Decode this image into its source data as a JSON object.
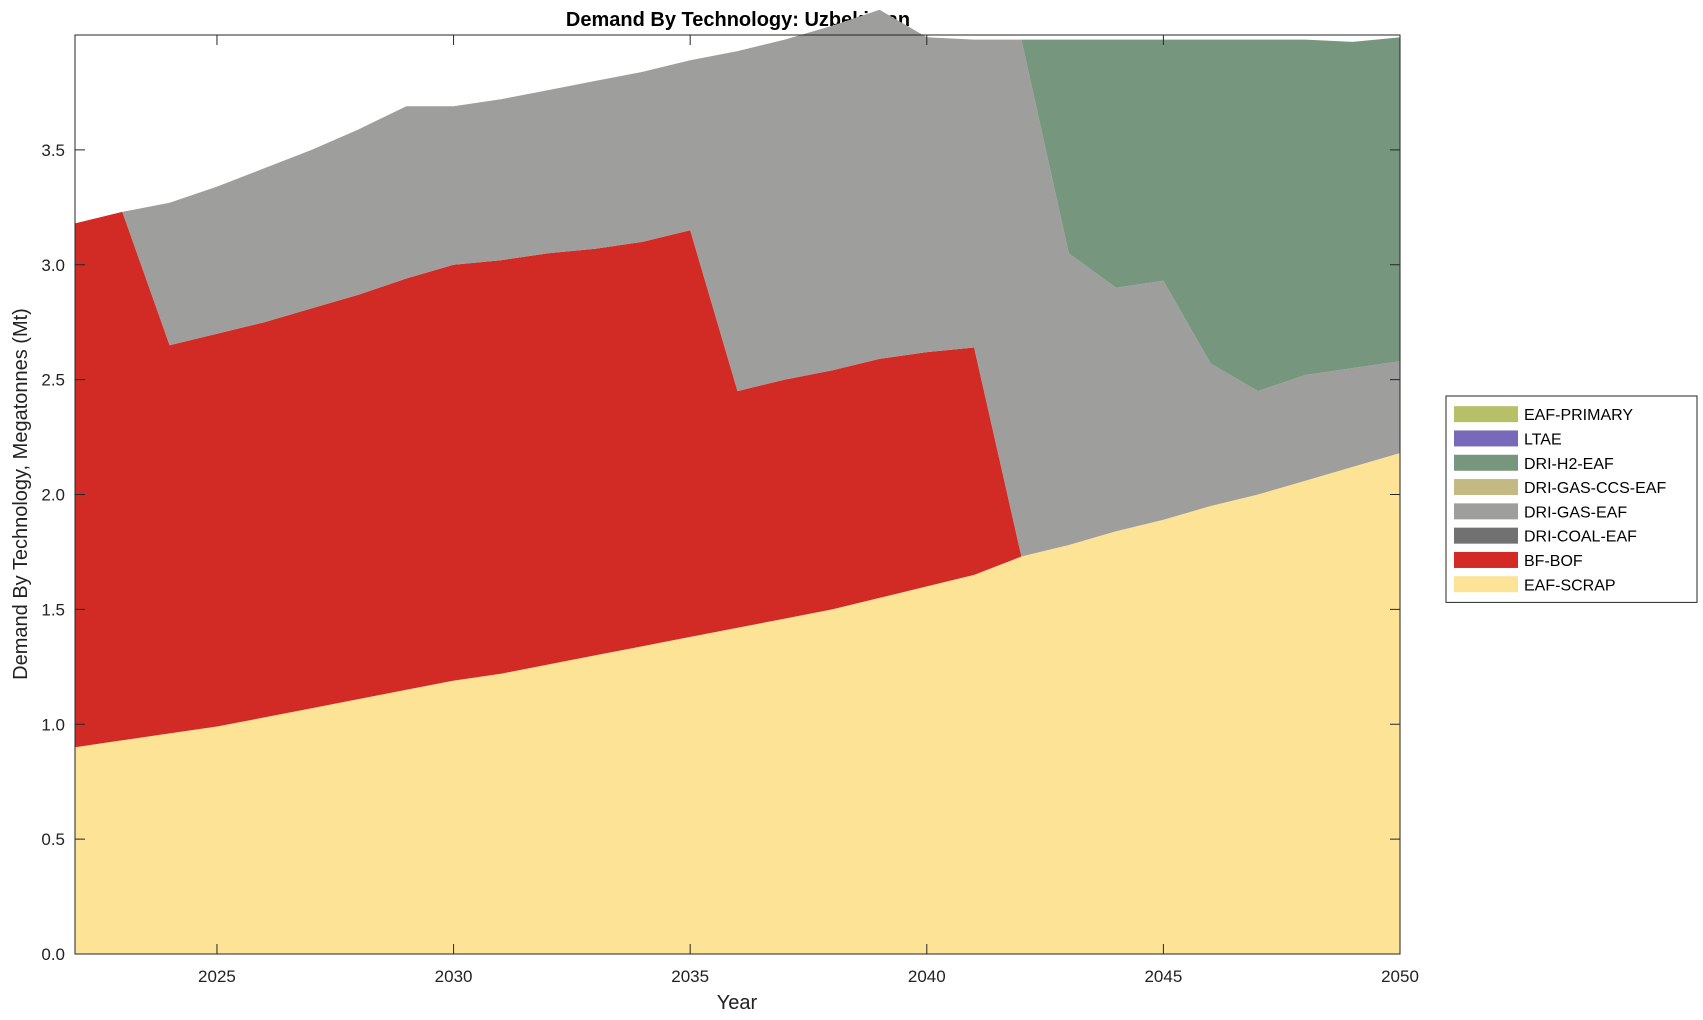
{
  "chart_data": {
    "type": "area",
    "stacked": true,
    "title": "Demand By Technology: Uzbekistan",
    "xlabel": "Year",
    "ylabel": "Demand By Technology, Megatonnes (Mt)",
    "xlim": [
      2022,
      2050
    ],
    "ylim": [
      0,
      4
    ],
    "xticks": [
      "2025",
      "2030",
      "2035",
      "2040",
      "2045",
      "2050"
    ],
    "yticks": [
      "0.0",
      "0.5",
      "1.0",
      "1.5",
      "2.0",
      "2.5",
      "3.0",
      "3.5"
    ],
    "grid": false,
    "legend_position": "right",
    "x": [
      2022,
      2023,
      2024,
      2025,
      2026,
      2027,
      2028,
      2029,
      2030,
      2031,
      2032,
      2033,
      2034,
      2035,
      2036,
      2037,
      2038,
      2039,
      2040,
      2041,
      2042,
      2043,
      2044,
      2045,
      2046,
      2047,
      2048,
      2049,
      2050
    ],
    "series": [
      {
        "name": "EAF-SCRAP",
        "color": "#fde396",
        "values": [
          0.9,
          0.93,
          0.96,
          0.99,
          1.03,
          1.07,
          1.11,
          1.15,
          1.19,
          1.22,
          1.26,
          1.3,
          1.34,
          1.38,
          1.42,
          1.46,
          1.5,
          1.55,
          1.6,
          1.65,
          1.73,
          1.78,
          1.84,
          1.89,
          1.95,
          2.0,
          2.06,
          2.12,
          2.18
        ]
      },
      {
        "name": "BF-BOF",
        "color": "#d22a24",
        "values": [
          2.28,
          2.3,
          1.69,
          1.71,
          1.72,
          1.74,
          1.76,
          1.79,
          1.81,
          1.8,
          1.79,
          1.77,
          1.76,
          1.77,
          1.03,
          1.04,
          1.04,
          1.04,
          1.02,
          0.99,
          0,
          0,
          0,
          0,
          0,
          0,
          0,
          0,
          0
        ]
      },
      {
        "name": "DRI-COAL-EAF",
        "color": "#717171",
        "values": [
          0,
          0,
          0,
          0,
          0,
          0,
          0,
          0,
          0,
          0,
          0,
          0,
          0,
          0,
          0,
          0,
          0,
          0,
          0,
          0,
          0,
          0,
          0,
          0,
          0,
          0,
          0,
          0,
          0
        ]
      },
      {
        "name": "DRI-GAS-EAF",
        "color": "#9e9e9c",
        "values": [
          0,
          0,
          0.62,
          0.64,
          0.67,
          0.69,
          0.72,
          0.75,
          0.69,
          0.7,
          0.71,
          0.73,
          0.74,
          0.74,
          1.48,
          1.48,
          1.5,
          1.52,
          1.37,
          1.34,
          2.25,
          1.27,
          1.06,
          1.04,
          0.62,
          0.45,
          0.46,
          0.43,
          0.4
        ]
      },
      {
        "name": "DRI-GAS-CCS-EAF",
        "color": "#c4b982",
        "values": [
          0,
          0,
          0,
          0,
          0,
          0,
          0,
          0,
          0,
          0,
          0,
          0,
          0,
          0,
          0,
          0,
          0,
          0,
          0,
          0,
          0,
          0,
          0,
          0,
          0,
          0,
          0,
          0,
          0
        ]
      },
      {
        "name": "DRI-H2-EAF",
        "color": "#76977d",
        "values": [
          0,
          0,
          0,
          0,
          0,
          0,
          0,
          0,
          0,
          0,
          0,
          0,
          0,
          0,
          0,
          0,
          0,
          0,
          0,
          0,
          0,
          0.93,
          1.08,
          1.05,
          1.41,
          1.53,
          1.46,
          1.42,
          1.41
        ]
      },
      {
        "name": "LTAE",
        "color": "#786ab8",
        "values": [
          0,
          0,
          0,
          0,
          0,
          0,
          0,
          0,
          0,
          0,
          0,
          0,
          0,
          0,
          0,
          0,
          0,
          0,
          0,
          0,
          0,
          0,
          0,
          0,
          0,
          0,
          0,
          0,
          0
        ]
      },
      {
        "name": "EAF-PRIMARY",
        "color": "#b8c067",
        "values": [
          0,
          0,
          0,
          0,
          0,
          0,
          0,
          0,
          0,
          0,
          0,
          0,
          0,
          0,
          0,
          0,
          0,
          0,
          0,
          0,
          0,
          0,
          0,
          0,
          0,
          0,
          0,
          0,
          0
        ]
      }
    ],
    "legend_order": [
      "EAF-PRIMARY",
      "LTAE",
      "DRI-H2-EAF",
      "DRI-GAS-CCS-EAF",
      "DRI-GAS-EAF",
      "DRI-COAL-EAF",
      "BF-BOF",
      "EAF-SCRAP"
    ]
  }
}
